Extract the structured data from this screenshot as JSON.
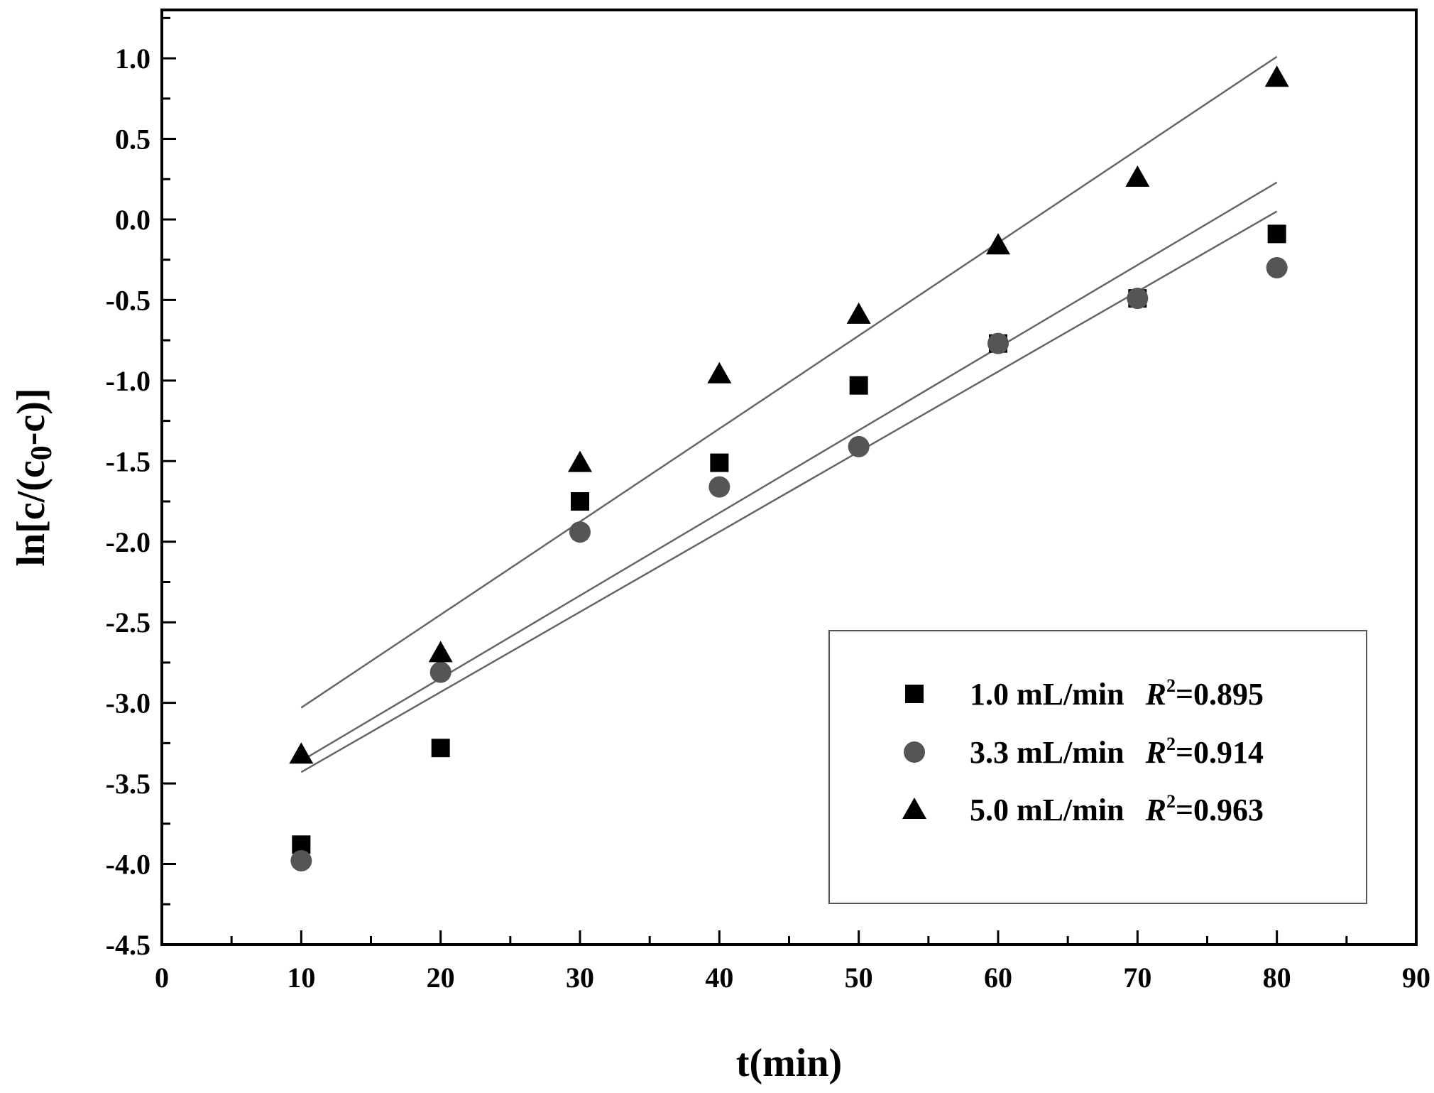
{
  "chart_data": {
    "type": "scatter",
    "xlabel": "t(min)",
    "ylabel_parts": {
      "prefix": "ln[c/(c",
      "sub": "0",
      "suffix": "-c)]"
    },
    "xlim": [
      0,
      90
    ],
    "ylim": [
      -4.5,
      1.3
    ],
    "x_ticks": [
      "0",
      "10",
      "20",
      "30",
      "40",
      "50",
      "60",
      "70",
      "80",
      "90"
    ],
    "x_tick_values": [
      0,
      10,
      20,
      30,
      40,
      50,
      60,
      70,
      80,
      90
    ],
    "y_ticks": [
      "1.0",
      "0.5",
      "0.0",
      "-0.5",
      "-1.0",
      "-1.5",
      "-2.0",
      "-2.5",
      "-3.0",
      "-3.5",
      "-4.0",
      "-4.5"
    ],
    "y_tick_values": [
      1.0,
      0.5,
      0.0,
      -0.5,
      -1.0,
      -1.5,
      -2.0,
      -2.5,
      -3.0,
      -3.5,
      -4.0,
      -4.5
    ],
    "grid": false,
    "legend_position": "bottom-right",
    "colors": {
      "square": "#000000",
      "circle": "#555555",
      "triangle": "#000000",
      "fit_line": "#666666"
    },
    "series": [
      {
        "name": "1.0 mL/min",
        "r2_label": "R",
        "r2_sup": "2",
        "r2_value": "=0.895",
        "marker": "square",
        "x": [
          10,
          20,
          30,
          40,
          50,
          60,
          70,
          80
        ],
        "y": [
          -3.88,
          -3.28,
          -1.75,
          -1.51,
          -1.03,
          -0.77,
          -0.49,
          -0.09
        ],
        "fit": {
          "x": [
            10,
            80
          ],
          "y": [
            -3.36,
            0.23
          ]
        }
      },
      {
        "name": "3.3 mL/min",
        "r2_label": "R",
        "r2_sup": "2",
        "r2_value": "=0.914",
        "marker": "circle",
        "x": [
          10,
          20,
          30,
          40,
          50,
          60,
          70,
          80
        ],
        "y": [
          -3.98,
          -2.81,
          -1.94,
          -1.66,
          -1.41,
          -0.77,
          -0.49,
          -0.3
        ],
        "fit": {
          "x": [
            10,
            80
          ],
          "y": [
            -3.43,
            0.05
          ]
        }
      },
      {
        "name": "5.0 mL/min",
        "r2_label": "R",
        "r2_sup": "2",
        "r2_value": "=0.963",
        "marker": "triangle",
        "x": [
          10,
          20,
          30,
          40,
          50,
          60,
          70,
          80
        ],
        "y": [
          -3.32,
          -2.69,
          -1.51,
          -0.96,
          -0.59,
          -0.16,
          0.26,
          0.88
        ],
        "fit": {
          "x": [
            10,
            80
          ],
          "y": [
            -3.03,
            1.01
          ]
        }
      }
    ]
  }
}
